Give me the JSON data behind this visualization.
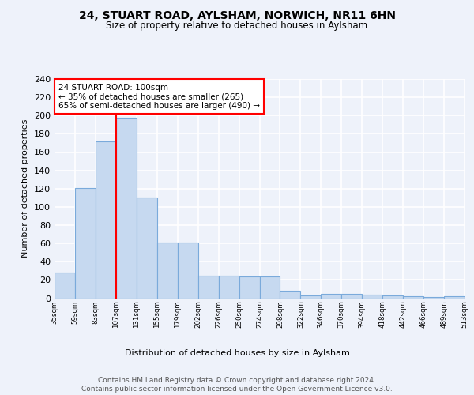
{
  "title": "24, STUART ROAD, AYLSHAM, NORWICH, NR11 6HN",
  "subtitle": "Size of property relative to detached houses in Aylsham",
  "xlabel": "Distribution of detached houses by size in Aylsham",
  "ylabel": "Number of detached properties",
  "bar_values": [
    28,
    121,
    172,
    198,
    110,
    61,
    61,
    25,
    25,
    24,
    24,
    8,
    3,
    5,
    5,
    4,
    3,
    2,
    1,
    2
  ],
  "categories": [
    "35sqm",
    "59sqm",
    "83sqm",
    "107sqm",
    "131sqm",
    "155sqm",
    "179sqm",
    "202sqm",
    "226sqm",
    "250sqm",
    "274sqm",
    "298sqm",
    "322sqm",
    "346sqm",
    "370sqm",
    "394sqm",
    "418sqm",
    "442sqm",
    "466sqm",
    "489sqm",
    "513sqm"
  ],
  "bar_color": "#c6d9f0",
  "bar_edge_color": "#7aaadb",
  "red_line_x": 3,
  "annotation_text": "24 STUART ROAD: 100sqm\n← 35% of detached houses are smaller (265)\n65% of semi-detached houses are larger (490) →",
  "annotation_box_color": "white",
  "annotation_box_edge_color": "red",
  "vline_color": "red",
  "ylim": [
    0,
    240
  ],
  "yticks": [
    0,
    20,
    40,
    60,
    80,
    100,
    120,
    140,
    160,
    180,
    200,
    220,
    240
  ],
  "footer_text": "Contains HM Land Registry data © Crown copyright and database right 2024.\nContains public sector information licensed under the Open Government Licence v3.0.",
  "background_color": "#eef2fa",
  "grid_color": "white"
}
